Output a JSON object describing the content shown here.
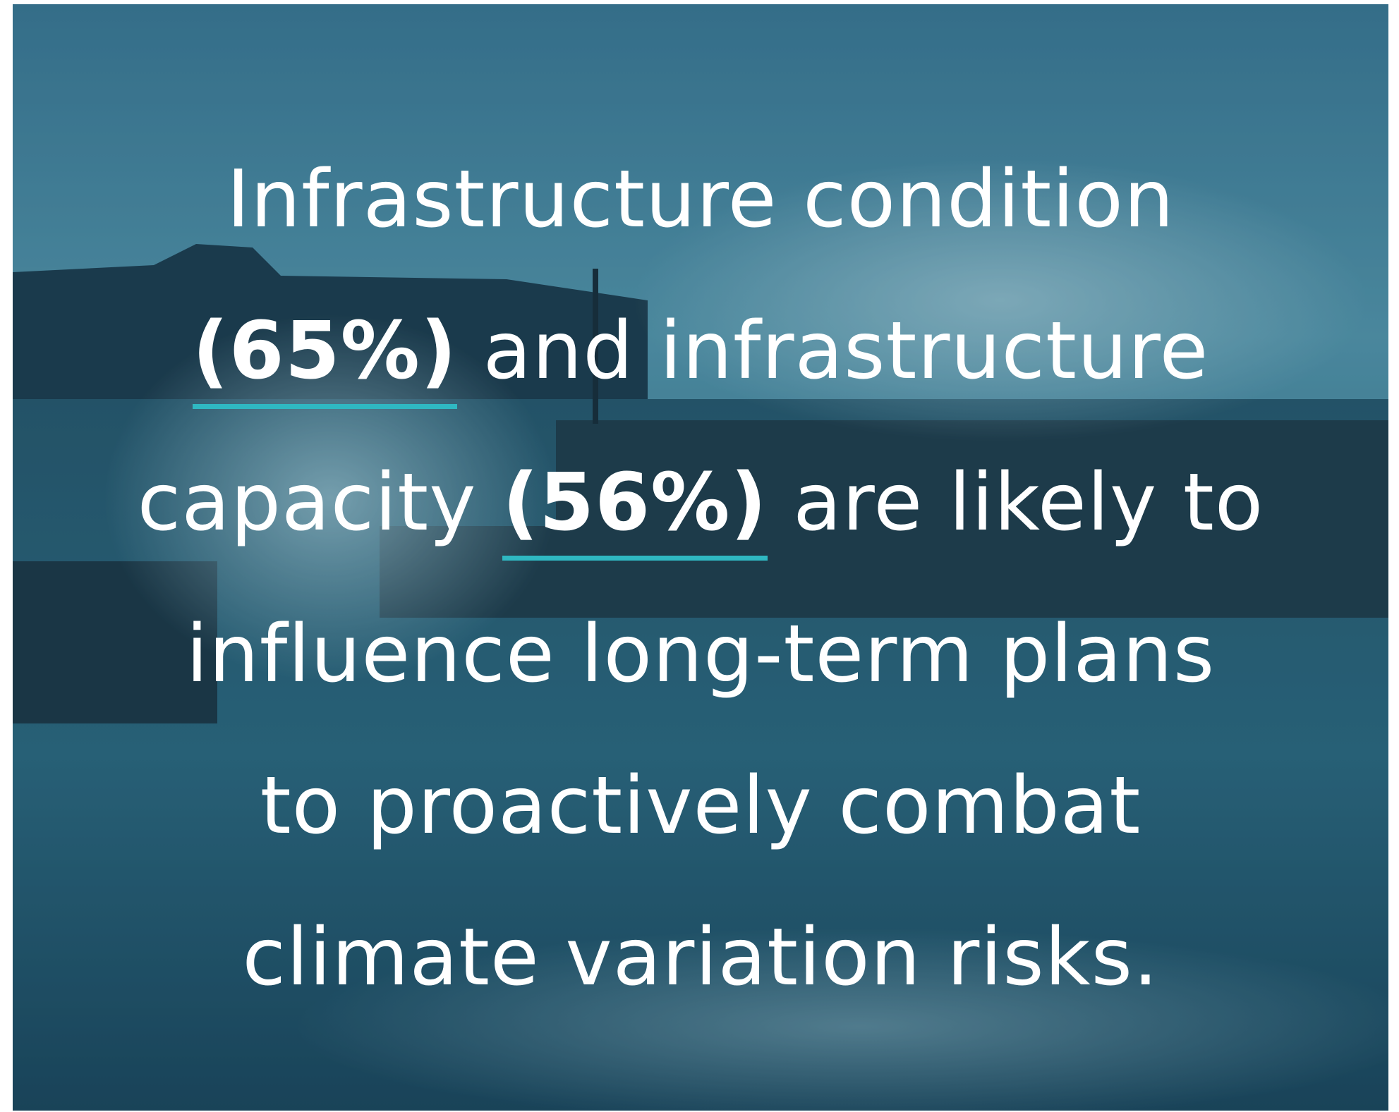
{
  "text": {
    "lines": [
      [
        {
          "text": "Infrastructure condition"
        }
      ],
      [
        {
          "text": "(65%)",
          "emphasis": true
        },
        {
          "text": " and infrastructure"
        }
      ],
      [
        {
          "text": "capacity "
        },
        {
          "text": "(56%)",
          "emphasis": true
        },
        {
          "text": " are likely to"
        }
      ],
      [
        {
          "text": "influence long-term plans"
        }
      ],
      [
        {
          "text": "to proactively combat"
        }
      ],
      [
        {
          "text": "climate variation risks."
        }
      ]
    ]
  }
}
